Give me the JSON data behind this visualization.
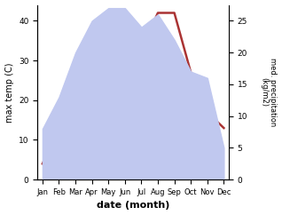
{
  "months": [
    "Jan",
    "Feb",
    "Mar",
    "Apr",
    "May",
    "Jun",
    "Jul",
    "Aug",
    "Sep",
    "Oct",
    "Nov",
    "Dec"
  ],
  "temp": [
    4,
    13,
    25,
    27,
    26,
    31,
    33,
    42,
    42,
    27,
    17,
    13
  ],
  "precip": [
    8,
    13,
    20,
    25,
    27,
    27,
    24,
    26,
    22,
    17,
    16,
    5
  ],
  "temp_color": "#aa3333",
  "precip_fill_color": "#c0c8ef",
  "ylabel_left": "max temp (C)",
  "ylabel_right": "med. precipitation\n(kg/m2)",
  "xlabel": "date (month)",
  "ylim_left": [
    0,
    44
  ],
  "ylim_right": [
    0,
    27.5
  ],
  "left_ticks": [
    0,
    10,
    20,
    30,
    40
  ],
  "right_ticks": [
    0,
    5,
    10,
    15,
    20,
    25
  ],
  "background_color": "#ffffff"
}
